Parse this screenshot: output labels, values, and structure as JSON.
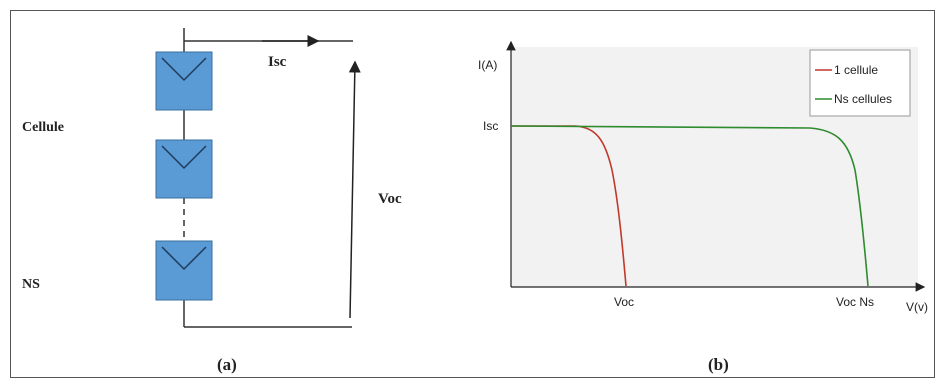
{
  "left": {
    "label_cellule": "Cellule",
    "label_ns": "NS",
    "label_isc": "Isc",
    "label_voc": "Voc",
    "caption": "(a)"
  },
  "right": {
    "caption": "(b)",
    "chart_data": {
      "type": "line",
      "ylabel": "I(A)",
      "xlabel": "V(v)",
      "x_ticks": [
        "Voc",
        "Voc Ns"
      ],
      "y_ticks": [
        "Isc"
      ],
      "series": [
        {
          "name": "1 cellule",
          "color": "#c0392b",
          "shape": "short I-V curve ending at Voc"
        },
        {
          "name": "Ns cellules",
          "color": "#2e8b2e",
          "shape": "long I-V curve ending at Voc Ns"
        }
      ],
      "legend_position": "top-right",
      "background": "#f2f2f2"
    }
  },
  "colors": {
    "cell_fill": "#5b9bd5",
    "cell_stroke": "#3a6fa0",
    "wire": "#333333"
  }
}
